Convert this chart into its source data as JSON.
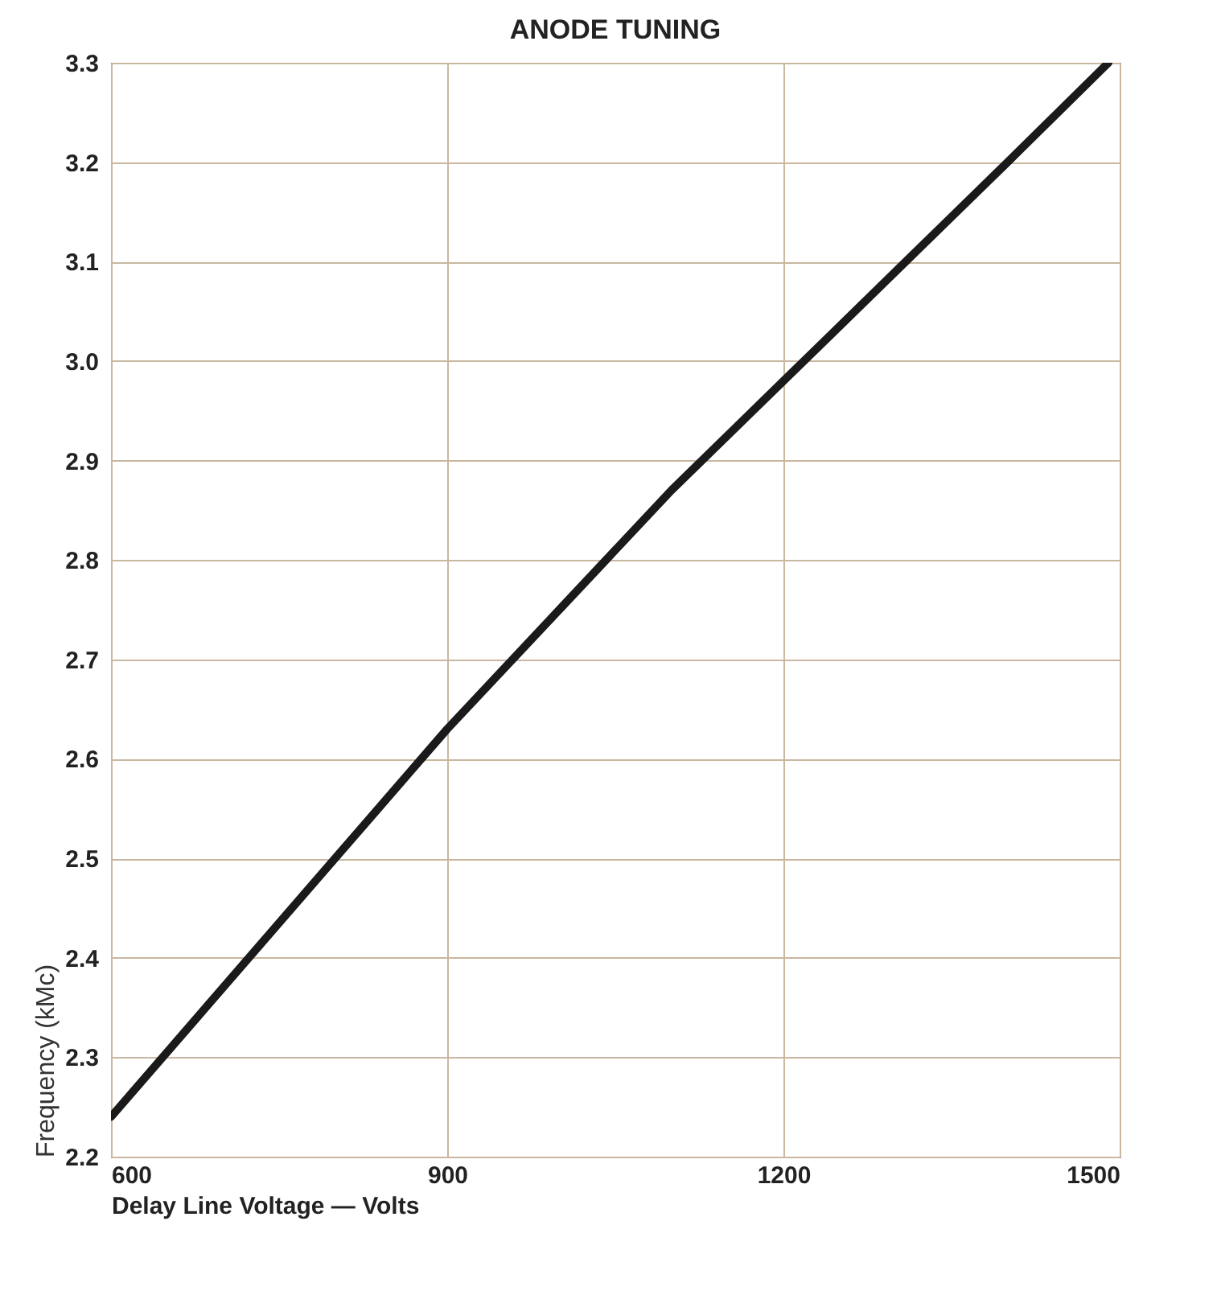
{
  "chart_data": {
    "type": "line",
    "title": "ANODE TUNING",
    "xlabel": "Delay Line Voltage — Volts",
    "ylabel": "Frequency  (kMc)",
    "x": [
      600,
      700,
      800,
      900,
      1000,
      1100,
      1200,
      1300,
      1400,
      1490
    ],
    "series": [
      {
        "color": "#1a1a1a",
        "values": [
          2.24,
          2.37,
          2.5,
          2.63,
          2.75,
          2.87,
          2.98,
          3.09,
          3.2,
          3.3
        ]
      }
    ],
    "xlim": [
      600,
      1500
    ],
    "xticks": [
      600,
      900,
      1200,
      1500
    ],
    "ylim": [
      2.2,
      3.3
    ],
    "yticks": [
      2.2,
      2.3,
      2.4,
      2.5,
      2.6,
      2.7,
      2.8,
      2.9,
      {
        "value": 3,
        "label": "3.0"
      },
      3.1,
      3.2,
      3.3
    ],
    "grid": true,
    "marker": "none",
    "line_style": "solid"
  }
}
